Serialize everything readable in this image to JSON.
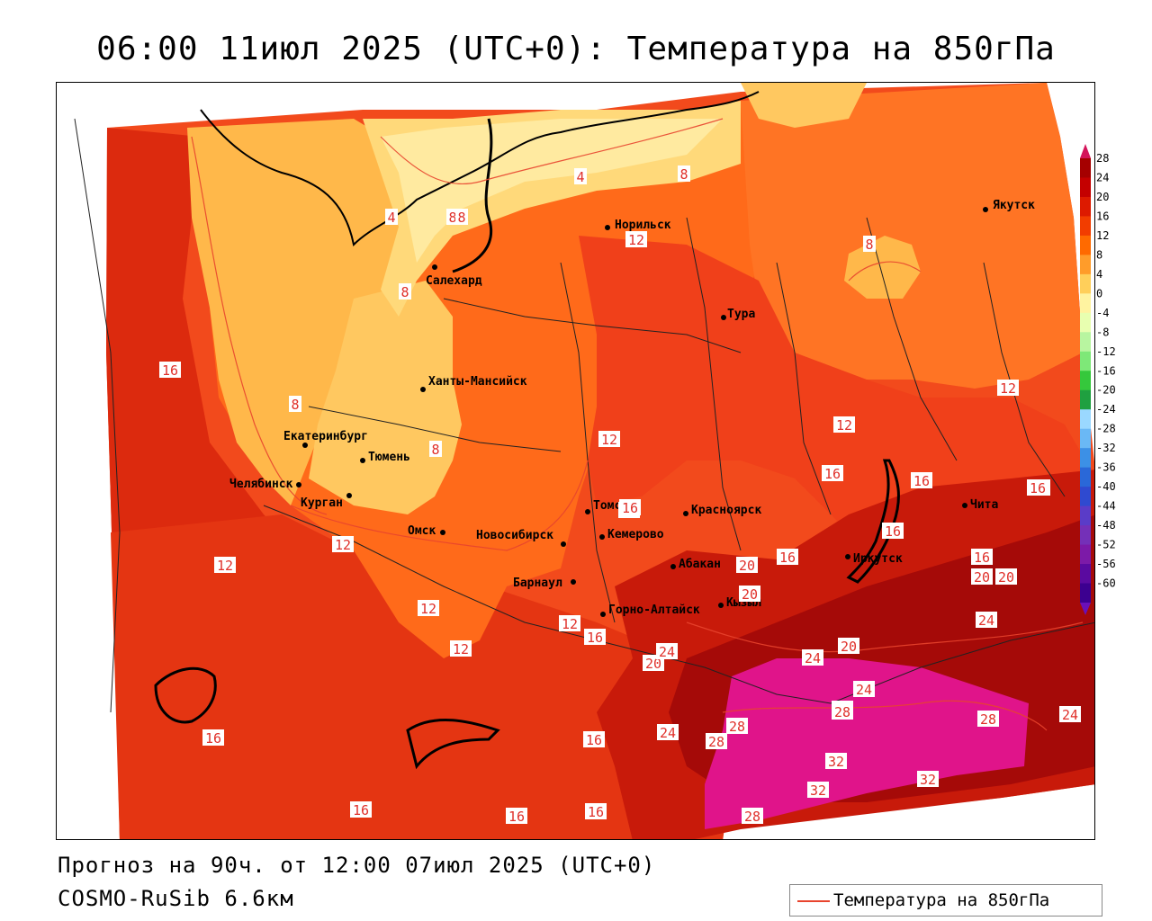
{
  "title": "06:00 11июл 2025 (UTC+0): Температура на 850гПа",
  "forecast_line": "Прогноз на 90ч. от 12:00 07июл 2025 (UTC+0)",
  "model_line": "COSMO-RuSib 6.6км",
  "legend": {
    "label": "Температура на 850гПа",
    "line_color": "#e8442e"
  },
  "colorbar": {
    "ticks": [
      "28",
      "24",
      "20",
      "16",
      "12",
      "8",
      "4",
      "0",
      "-4",
      "-8",
      "-12",
      "-16",
      "-20",
      "-24",
      "-28",
      "-32",
      "-36",
      "-40",
      "-44",
      "-48",
      "-52",
      "-56",
      "-60"
    ],
    "colors": [
      "#a50000",
      "#c40000",
      "#dd1a00",
      "#f23d00",
      "#ff6a00",
      "#ff9c2a",
      "#ffcf5a",
      "#fff3a0",
      "#e8ffb0",
      "#b8f5a0",
      "#7ee878",
      "#35c83c",
      "#1fa040",
      "#9ad8ff",
      "#6ab8f5",
      "#3c90e6",
      "#2a68d8",
      "#2f4ad0",
      "#5a3cc8",
      "#7430b8",
      "#7c1aa8",
      "#5a0aa0",
      "#3c0090"
    ],
    "top_color": "#d4145a"
  },
  "cities": [
    {
      "name": "Якутск"
    },
    {
      "name": "Норильск"
    },
    {
      "name": "Салехард"
    },
    {
      "name": "Тура"
    },
    {
      "name": "Ханты-Мансийск"
    },
    {
      "name": "Екатеринбург"
    },
    {
      "name": "Тюмень"
    },
    {
      "name": "Челябинск"
    },
    {
      "name": "Курган"
    },
    {
      "name": "Омск"
    },
    {
      "name": "Новосибирск"
    },
    {
      "name": "Томск"
    },
    {
      "name": "Кемерово"
    },
    {
      "name": "Красноярск"
    },
    {
      "name": "Барнаул"
    },
    {
      "name": "Абакан"
    },
    {
      "name": "Горно-Алтайск"
    },
    {
      "name": "Кызыл"
    },
    {
      "name": "Иркутск"
    },
    {
      "name": "Чита"
    }
  ],
  "contour_labels": [
    "4",
    "4",
    "8",
    "8",
    "8",
    "8",
    "8",
    "8",
    "8",
    "12",
    "12",
    "12",
    "12",
    "12",
    "12",
    "12",
    "12",
    "12",
    "12",
    "16",
    "16",
    "16",
    "16",
    "16",
    "16",
    "16",
    "16",
    "16",
    "16",
    "16",
    "16",
    "16",
    "16",
    "16",
    "20",
    "20",
    "20",
    "20",
    "20",
    "20",
    "24",
    "24",
    "24",
    "24",
    "24",
    "24",
    "28",
    "28",
    "28",
    "28",
    "28",
    "28",
    "32",
    "32",
    "32"
  ]
}
